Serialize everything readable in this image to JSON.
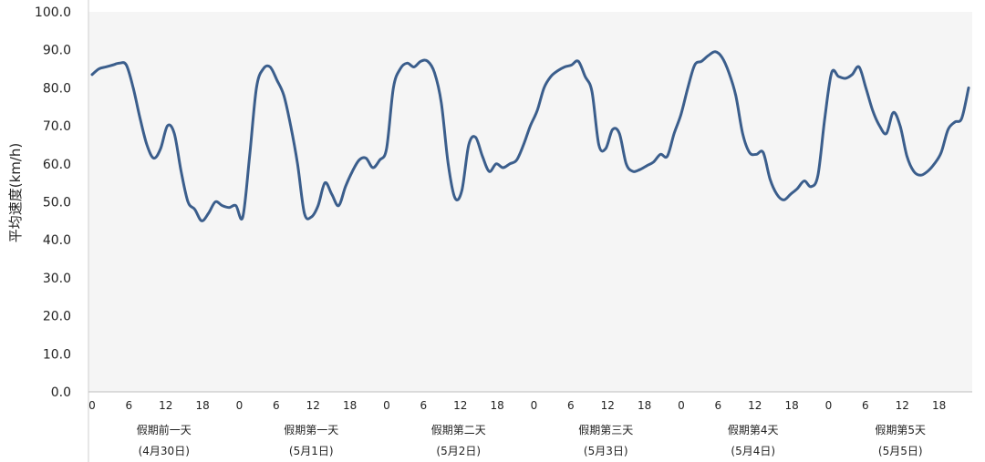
{
  "chart_data": {
    "type": "line",
    "title": "",
    "ylabel": "平均速度(km/h)",
    "xlabel": "",
    "ylim": [
      0,
      100
    ],
    "grid": false,
    "y_ticks": [
      "0.0",
      "10.0",
      "20.0",
      "30.0",
      "40.0",
      "50.0",
      "60.0",
      "70.0",
      "80.0",
      "90.0",
      "100.0"
    ],
    "x_tick_labels": [
      "0",
      "6",
      "12",
      "18"
    ],
    "groups": [
      {
        "name": "假期前一天",
        "date": "(4月30日)"
      },
      {
        "name": "假期第一天",
        "date": "(5月1日)"
      },
      {
        "name": "假期第二天",
        "date": "(5月2日)"
      },
      {
        "name": "假期第三天",
        "date": "(5月3日)"
      },
      {
        "name": "假期第4天",
        "date": "(5月4日)"
      },
      {
        "name": "假期第5天",
        "date": "(5月5日)"
      }
    ],
    "hours_per_group": 24,
    "series": [
      {
        "color": "#3b5e8c",
        "values": [
          83.5,
          85.0,
          85.5,
          86.0,
          86.5,
          86.0,
          80.0,
          72.0,
          65.0,
          61.5,
          64.0,
          70.0,
          68.0,
          58.0,
          50.0,
          48.0,
          45.0,
          47.0,
          50.0,
          49.0,
          48.5,
          49.0,
          46.0,
          62.0,
          80.0,
          85.0,
          85.5,
          82.0,
          78.0,
          70.0,
          60.0,
          47.0,
          46.0,
          49.0,
          55.0,
          52.0,
          49.0,
          54.0,
          58.0,
          61.0,
          61.5,
          59.0,
          61.0,
          64.0,
          80.0,
          85.0,
          86.5,
          85.5,
          87.0,
          87.0,
          84.0,
          76.0,
          60.0,
          51.0,
          53.0,
          65.0,
          67.0,
          62.0,
          58.0,
          60.0,
          59.0,
          60.0,
          61.0,
          65.0,
          70.0,
          74.0,
          80.0,
          83.0,
          84.5,
          85.5,
          86.0,
          87.0,
          83.0,
          79.0,
          65.0,
          64.0,
          69.0,
          68.0,
          60.0,
          58.0,
          58.5,
          59.5,
          60.5,
          62.5,
          62.0,
          68.0,
          73.0,
          80.0,
          86.0,
          87.0,
          88.5,
          89.5,
          88.0,
          84.0,
          78.0,
          68.0,
          63.0,
          62.5,
          63.0,
          56.0,
          52.0,
          50.5,
          52.0,
          53.5,
          55.5,
          54.0,
          57.0,
          72.0,
          84.0,
          83.0,
          82.5,
          83.5,
          85.5,
          80.0,
          74.0,
          70.0,
          68.0,
          73.5,
          70.0,
          62.0,
          58.0,
          57.0,
          58.0,
          60.0,
          63.0,
          69.0,
          71.0,
          72.0,
          80.0
        ]
      }
    ]
  }
}
